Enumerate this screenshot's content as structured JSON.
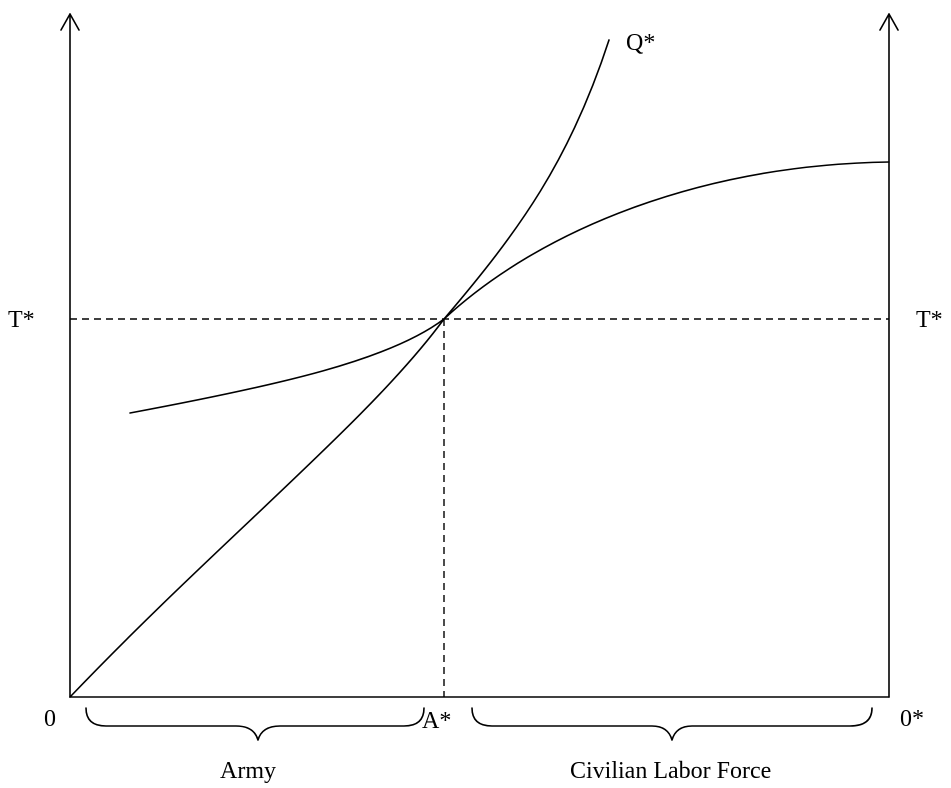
{
  "labels": {
    "q_star": "Q*",
    "t_star_left": "T*",
    "t_star_right": "T*",
    "origin_left": "0",
    "a_star": "A*",
    "origin_right": "0*",
    "army": "Army",
    "civilian_labor_force": "Civilian Labor Force"
  }
}
